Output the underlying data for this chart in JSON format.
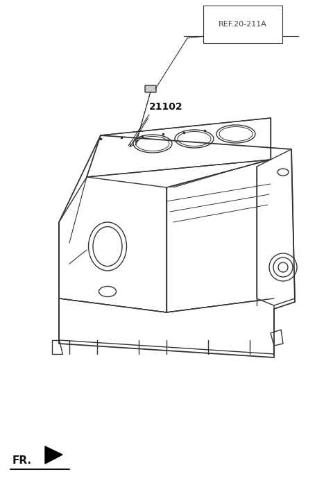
{
  "bg_color": "#ffffff",
  "line_color": "#333333",
  "label_color": "#444444",
  "ref_label": "REF.20-211A",
  "part_label": "21102",
  "fr_label": "FR.",
  "fig_width": 4.8,
  "fig_height": 7.16,
  "dpi": 100
}
